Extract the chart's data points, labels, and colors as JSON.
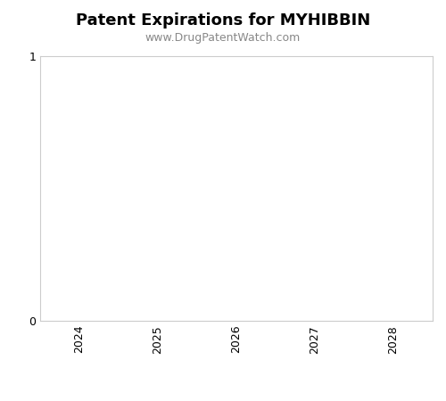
{
  "title": "Patent Expirations for MYHIBBIN",
  "subtitle": "www.DrugPatentWatch.com",
  "title_fontsize": 13,
  "subtitle_fontsize": 9,
  "title_fontweight": "bold",
  "xlim": [
    2023.5,
    2028.5
  ],
  "ylim": [
    0,
    1
  ],
  "xticks": [
    2024,
    2025,
    2026,
    2027,
    2028
  ],
  "yticks": [
    0,
    1
  ],
  "background_color": "#ffffff",
  "axes_facecolor": "#ffffff",
  "spine_color": "#cccccc",
  "tick_label_color": "#000000",
  "subtitle_color": "#888888",
  "xlabel": "",
  "ylabel": ""
}
